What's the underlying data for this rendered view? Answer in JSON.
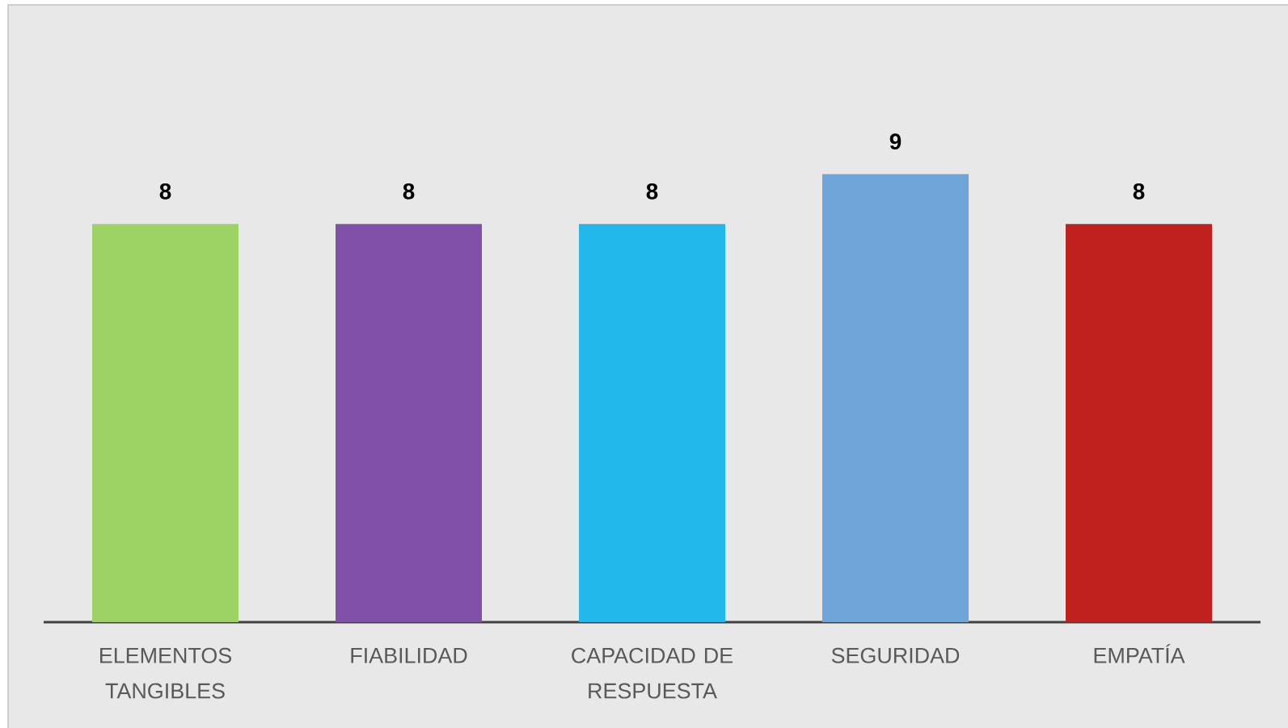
{
  "chart_data": {
    "type": "bar",
    "categories": [
      "ELEMENTOS TANGIBLES",
      "FIABILIDAD",
      "CAPACIDAD DE RESPUESTA",
      "SEGURIDAD",
      "EMPATÍA"
    ],
    "values": [
      8,
      8,
      8,
      9,
      8
    ],
    "colors": [
      "#9dd264",
      "#8150a8",
      "#22b8ec",
      "#6fa6d9",
      "#c0201e"
    ],
    "data_labels": true,
    "tick_labels": "x"
  }
}
